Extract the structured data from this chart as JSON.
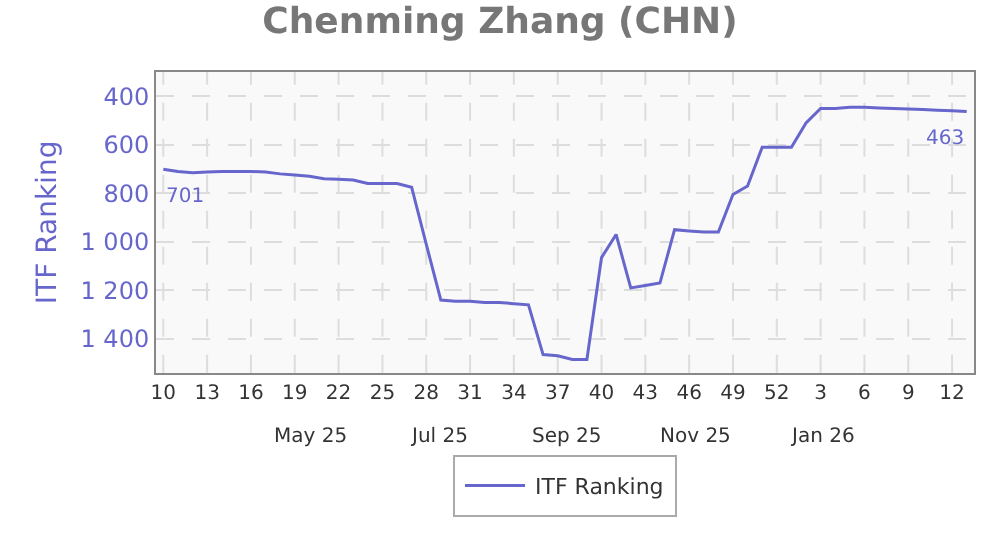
{
  "chart_data": {
    "type": "line",
    "title": "Chenming Zhang (CHN)",
    "ylabel": "ITF Ranking",
    "categories": [
      "10",
      null,
      null,
      "13",
      null,
      null,
      "16",
      null,
      null,
      "19",
      null,
      null,
      "22",
      null,
      null,
      "25",
      null,
      null,
      "28",
      null,
      null,
      "31",
      null,
      null,
      "34",
      null,
      null,
      "37",
      null,
      null,
      "40",
      null,
      null,
      "43",
      null,
      null,
      "46",
      null,
      null,
      "49",
      null,
      null,
      "52",
      null,
      null,
      "3",
      null,
      null,
      "6",
      null,
      null,
      "9",
      null,
      null,
      "12",
      null
    ],
    "series": [
      {
        "name": "ITF Ranking",
        "color": "#6666cc",
        "values": [
          701,
          710,
          715,
          712,
          710,
          710,
          710,
          712,
          720,
          725,
          730,
          740,
          742,
          745,
          760,
          760,
          760,
          775,
          1010,
          1240,
          1245,
          1245,
          1250,
          1250,
          1255,
          1260,
          1465,
          1470,
          1485,
          1485,
          1065,
          970,
          1190,
          1180,
          1170,
          950,
          955,
          960,
          960,
          805,
          770,
          610,
          610,
          610,
          510,
          450,
          450,
          445,
          445,
          448,
          450,
          452,
          455,
          458,
          460,
          463
        ],
        "value_labels": [
          "701",
          null,
          null,
          null,
          null,
          null,
          null,
          null,
          null,
          null,
          null,
          null,
          null,
          null,
          null,
          null,
          null,
          null,
          null,
          null,
          null,
          null,
          null,
          null,
          null,
          null,
          null,
          null,
          null,
          null,
          null,
          null,
          null,
          null,
          null,
          null,
          null,
          null,
          null,
          null,
          null,
          null,
          null,
          null,
          null,
          null,
          null,
          null,
          null,
          null,
          null,
          null,
          null,
          null,
          null,
          "463"
        ]
      }
    ],
    "annotations": [
      "May 25",
      "Jul 25",
      "Sep 25",
      "Nov 25",
      "Jan 26"
    ],
    "ylim": [
      1540,
      300
    ],
    "yticks": [
      400,
      600,
      800,
      {
        "value": 1000,
        "label": "1 000"
      },
      {
        "value": 1200,
        "label": "1 200"
      },
      {
        "value": 1400,
        "label": "1 400"
      }
    ],
    "grid": true,
    "legend": "bottom",
    "marker": "none",
    "line_style": "solid"
  }
}
